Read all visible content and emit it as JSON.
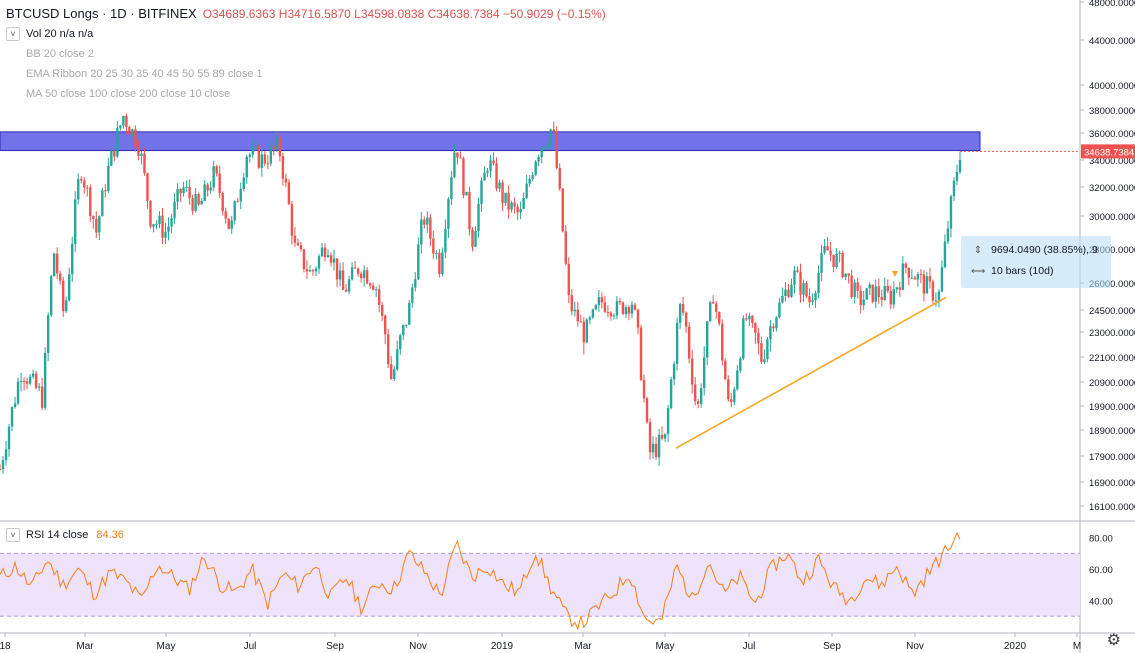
{
  "header": {
    "title": "BTCUSD Longs · 1D · BITFINEX",
    "ohlc_text": "O34689.6363 H34716.5870 L34598.0838 C34638.7384 −50.9029 (−0.15%)"
  },
  "indicators": [
    {
      "label": "Vol 20  n/a  n/a",
      "active": true
    },
    {
      "label": "BB 20 close 2",
      "active": false
    },
    {
      "label": "EMA Ribbon 20 25 30 35 40 45 50 55 89 close 1",
      "active": false
    },
    {
      "label": "MA 50 close 100 close 200 close 10 close",
      "active": false
    }
  ],
  "rsi": {
    "label": "RSI 14 close",
    "value": "84.36"
  },
  "info_box": {
    "range": "9694.0490 (38.85%), 9",
    "bars": "10 bars (10d)"
  },
  "colors": {
    "up": "#26a69a",
    "down": "#ef5350",
    "zone_fill": "#6a6ae8",
    "trendline": "#f5a623",
    "rsi_line": "#f57f17",
    "rsi_band": "#efe2fb",
    "price_label": "#ef5350"
  },
  "chart_data": {
    "type": "candlestick",
    "price_axis": {
      "ticks": [
        "48000.0000",
        "44000.0000",
        "40000.0000",
        "38000.0000",
        "36000.0000",
        "34000.0000",
        "32000.0000",
        "30000.0000",
        "28000.0000",
        "26000.0000",
        "24500.0000",
        "23000.0000",
        "22100.0000",
        "20900.0000",
        "19900.0000",
        "18900.0000",
        "17900.0000",
        "16900.0000",
        "16100.0000"
      ],
      "last_price": "34638.7384"
    },
    "time_axis": {
      "labels": [
        "18",
        "Mar",
        "May",
        "Jul",
        "Sep",
        "Nov",
        "2019",
        "Mar",
        "May",
        "Jul",
        "Sep",
        "Nov",
        "2020",
        "M"
      ]
    },
    "rsi_axis": {
      "ticks": [
        "80.00",
        "60.00",
        "40.00"
      ],
      "upper_band": 70,
      "lower_band": 30
    },
    "price_series": [
      {
        "t": 0,
        "c": 17400
      },
      {
        "t": 0.02,
        "c": 21500
      },
      {
        "t": 0.04,
        "c": 20200
      },
      {
        "t": 0.05,
        "c": 28000
      },
      {
        "t": 0.06,
        "c": 24000
      },
      {
        "t": 0.075,
        "c": 33500
      },
      {
        "t": 0.09,
        "c": 29000
      },
      {
        "t": 0.1,
        "c": 33000
      },
      {
        "t": 0.115,
        "c": 37500
      },
      {
        "t": 0.13,
        "c": 35000
      },
      {
        "t": 0.14,
        "c": 30000
      },
      {
        "t": 0.155,
        "c": 29000
      },
      {
        "t": 0.17,
        "c": 32000
      },
      {
        "t": 0.185,
        "c": 30500
      },
      {
        "t": 0.2,
        "c": 33000
      },
      {
        "t": 0.215,
        "c": 29000
      },
      {
        "t": 0.23,
        "c": 34500
      },
      {
        "t": 0.245,
        "c": 34000
      },
      {
        "t": 0.26,
        "c": 35000
      },
      {
        "t": 0.275,
        "c": 28000
      },
      {
        "t": 0.29,
        "c": 26500
      },
      {
        "t": 0.305,
        "c": 28500
      },
      {
        "t": 0.32,
        "c": 25500
      },
      {
        "t": 0.335,
        "c": 27000
      },
      {
        "t": 0.35,
        "c": 26000
      },
      {
        "t": 0.365,
        "c": 21000
      },
      {
        "t": 0.38,
        "c": 24000
      },
      {
        "t": 0.395,
        "c": 30000
      },
      {
        "t": 0.41,
        "c": 27000
      },
      {
        "t": 0.425,
        "c": 35500
      },
      {
        "t": 0.44,
        "c": 28500
      },
      {
        "t": 0.455,
        "c": 34000
      },
      {
        "t": 0.47,
        "c": 31000
      },
      {
        "t": 0.485,
        "c": 30000
      },
      {
        "t": 0.5,
        "c": 34500
      },
      {
        "t": 0.515,
        "c": 36500
      },
      {
        "t": 0.53,
        "c": 25000
      },
      {
        "t": 0.545,
        "c": 23000
      },
      {
        "t": 0.56,
        "c": 25000
      },
      {
        "t": 0.575,
        "c": 24500
      },
      {
        "t": 0.59,
        "c": 25000
      },
      {
        "t": 0.605,
        "c": 18000
      },
      {
        "t": 0.62,
        "c": 18500
      },
      {
        "t": 0.635,
        "c": 25000
      },
      {
        "t": 0.65,
        "c": 19500
      },
      {
        "t": 0.665,
        "c": 25500
      },
      {
        "t": 0.68,
        "c": 19500
      },
      {
        "t": 0.695,
        "c": 24000
      },
      {
        "t": 0.71,
        "c": 22000
      },
      {
        "t": 0.725,
        "c": 24500
      },
      {
        "t": 0.74,
        "c": 26500
      },
      {
        "t": 0.755,
        "c": 25000
      },
      {
        "t": 0.77,
        "c": 28000
      },
      {
        "t": 0.785,
        "c": 27000
      },
      {
        "t": 0.8,
        "c": 25000
      },
      {
        "t": 0.815,
        "c": 25500
      },
      {
        "t": 0.83,
        "c": 25200
      },
      {
        "t": 0.845,
        "c": 27000
      },
      {
        "t": 0.86,
        "c": 26000
      },
      {
        "t": 0.875,
        "c": 25200
      },
      {
        "t": 0.885,
        "c": 30000
      },
      {
        "t": 0.895,
        "c": 34638
      }
    ],
    "resistance_zone": {
      "low": 34700,
      "high": 36100
    },
    "trendline": {
      "start_price": 18200,
      "end_price": 25200
    },
    "rsi_series": [
      55,
      62,
      48,
      66,
      50,
      60,
      44,
      58,
      52,
      40,
      63,
      55,
      47,
      68,
      50,
      45,
      60,
      38,
      57,
      49,
      64,
      42,
      55,
      35,
      52,
      47,
      70,
      58,
      43,
      76,
      55,
      62,
      50,
      45,
      72,
      48,
      30,
      25,
      36,
      45,
      58,
      28,
      26,
      62,
      40,
      66,
      44,
      55,
      38,
      60,
      70,
      52,
      66,
      48,
      40,
      55,
      50,
      62,
      44,
      58,
      70,
      84
    ]
  }
}
